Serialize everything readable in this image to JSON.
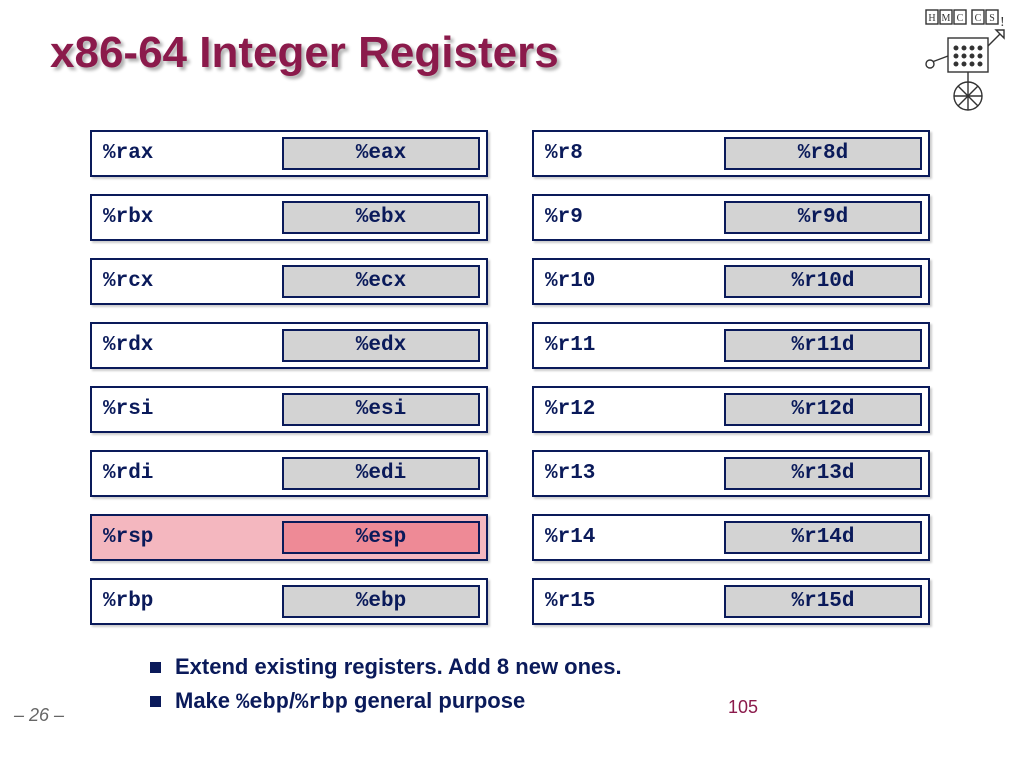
{
  "title": "x86-64 Integer Registers",
  "colors": {
    "title_color": "#8b1a4b",
    "border_color": "#0a1a5a",
    "text_color": "#0a1a5a",
    "subbox_bg": "#d3d3d3",
    "highlight_bg": "#f4b7bf",
    "highlight_subbox_bg": "#ee8a96",
    "background": "#ffffff"
  },
  "left_column": [
    {
      "r64": "%rax",
      "r32": "%eax",
      "highlight": false
    },
    {
      "r64": "%rbx",
      "r32": "%ebx",
      "highlight": false
    },
    {
      "r64": "%rcx",
      "r32": "%ecx",
      "highlight": false
    },
    {
      "r64": "%rdx",
      "r32": "%edx",
      "highlight": false
    },
    {
      "r64": "%rsi",
      "r32": "%esi",
      "highlight": false
    },
    {
      "r64": "%rdi",
      "r32": "%edi",
      "highlight": false
    },
    {
      "r64": "%rsp",
      "r32": "%esp",
      "highlight": true
    },
    {
      "r64": "%rbp",
      "r32": "%ebp",
      "highlight": false
    }
  ],
  "right_column": [
    {
      "r64": "%r8",
      "r32": "%r8d",
      "highlight": false
    },
    {
      "r64": "%r9",
      "r32": "%r9d",
      "highlight": false
    },
    {
      "r64": "%r10",
      "r32": "%r10d",
      "highlight": false
    },
    {
      "r64": "%r11",
      "r32": "%r11d",
      "highlight": false
    },
    {
      "r64": "%r12",
      "r32": "%r12d",
      "highlight": false
    },
    {
      "r64": "%r13",
      "r32": "%r13d",
      "highlight": false
    },
    {
      "r64": "%r14",
      "r32": "%r14d",
      "highlight": false
    },
    {
      "r64": "%r15",
      "r32": "%r15d",
      "highlight": false
    }
  ],
  "bullets": {
    "b1": "Extend existing registers.  Add 8 new ones.",
    "b2_pre": "Make ",
    "b2_mono1": "%ebp",
    "b2_sep": "/",
    "b2_mono2": "%rbp",
    "b2_post": " general purpose"
  },
  "page_left": "– 26 –",
  "page_right": "105",
  "logo_text": {
    "h": "H",
    "m": "M",
    "c1": "C",
    "c2": "C",
    "s": "S"
  }
}
